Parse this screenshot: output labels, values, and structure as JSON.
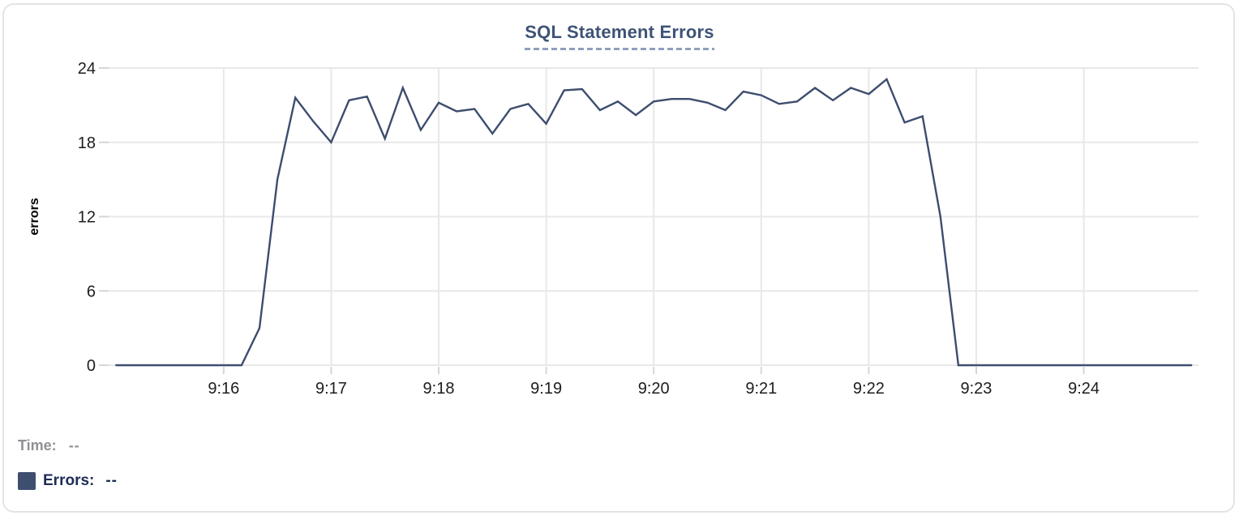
{
  "chart": {
    "title": "SQL Statement Errors"
  },
  "chart_data": {
    "type": "line",
    "title": "SQL Statement Errors",
    "xlabel": "",
    "ylabel": "errors",
    "ylim": [
      0,
      24
    ],
    "y_ticks": [
      0,
      6,
      12,
      18,
      24
    ],
    "x_tick_labels": [
      "9:16",
      "9:17",
      "9:18",
      "9:19",
      "9:20",
      "9:21",
      "9:22",
      "9:23",
      "9:24"
    ],
    "x_tick_seconds": [
      60,
      120,
      180,
      240,
      300,
      360,
      420,
      480,
      540
    ],
    "x_domain_seconds": [
      -6,
      604
    ],
    "start_time": "9:15:00",
    "interval_seconds": 10,
    "grid": true,
    "legend_position": "bottom-left",
    "series": [
      {
        "name": "Errors",
        "color": "#3d4d6e",
        "times": [
          "9:15:00",
          "9:15:10",
          "9:15:20",
          "9:15:30",
          "9:15:40",
          "9:15:50",
          "9:16:00",
          "9:16:10",
          "9:16:20",
          "9:16:30",
          "9:16:40",
          "9:16:50",
          "9:17:00",
          "9:17:10",
          "9:17:20",
          "9:17:30",
          "9:17:40",
          "9:17:50",
          "9:18:00",
          "9:18:10",
          "9:18:20",
          "9:18:30",
          "9:18:40",
          "9:18:50",
          "9:19:00",
          "9:19:10",
          "9:19:20",
          "9:19:30",
          "9:19:40",
          "9:19:50",
          "9:20:00",
          "9:20:10",
          "9:20:20",
          "9:20:30",
          "9:20:40",
          "9:20:50",
          "9:21:00",
          "9:21:10",
          "9:21:20",
          "9:21:30",
          "9:21:40",
          "9:21:50",
          "9:22:00",
          "9:22:10",
          "9:22:20",
          "9:22:30",
          "9:22:40",
          "9:22:50",
          "9:23:00",
          "9:23:10",
          "9:23:20",
          "9:23:30",
          "9:23:40",
          "9:23:50",
          "9:24:00",
          "9:24:10",
          "9:24:20",
          "9:24:30",
          "9:24:40",
          "9:24:50",
          "9:25:00"
        ],
        "values": [
          0,
          0,
          0,
          0,
          0,
          0,
          0,
          0,
          3,
          15,
          21.6,
          19.7,
          18,
          21.4,
          21.7,
          18.3,
          22.4,
          19,
          21.2,
          20.5,
          20.7,
          18.7,
          20.7,
          21.1,
          19.5,
          22.2,
          22.3,
          20.6,
          21.3,
          20.2,
          21.3,
          21.5,
          21.5,
          21.2,
          20.6,
          22.1,
          21.8,
          21.1,
          21.3,
          22.4,
          21.4,
          22.4,
          21.9,
          23.1,
          19.6,
          20.1,
          12,
          0,
          0,
          0,
          0,
          0,
          0,
          0,
          0,
          0,
          0,
          0,
          0,
          0,
          0
        ]
      }
    ]
  },
  "legend": {
    "time_label": "Time:",
    "time_value": "--",
    "errors_label": "Errors:",
    "errors_value": "--",
    "swatch_color": "#3e4e6e"
  },
  "colors": {
    "line": "#3d4d6e",
    "title": "#3e5377",
    "title_underline": "#8fa0bd",
    "grid": "#e8e8ea",
    "tick": "#d6d6d9",
    "axis_label": "#1d1d1f",
    "card_border": "#e4e4e7",
    "time_text": "#8e9094",
    "errors_text": "#1d2c55"
  }
}
